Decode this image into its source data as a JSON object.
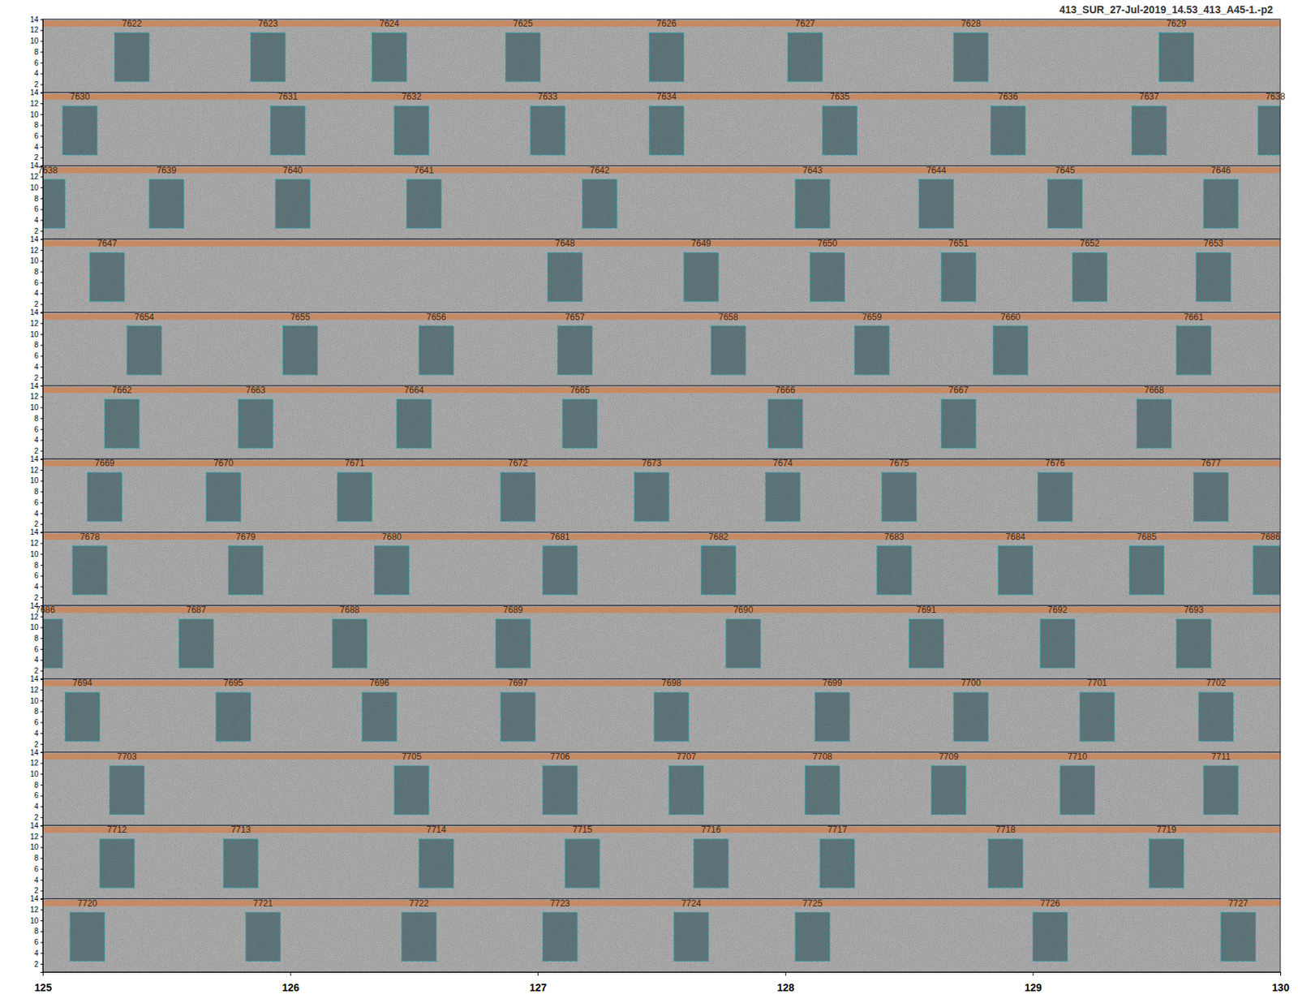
{
  "chart_data": {
    "type": "spectrogram_detections",
    "title": "413_SUR_27-Jul-2019_14.53_413_A45-1.-p2",
    "xlim": [
      125,
      130
    ],
    "xticks": [
      125,
      126,
      127,
      128,
      129,
      130
    ],
    "ylim": [
      0.5,
      14
    ],
    "yticks": [
      2,
      4,
      6,
      8,
      10,
      12,
      14
    ],
    "box_duration": 0.14,
    "freq_range": [
      2.5,
      11.5
    ],
    "rows": [
      {
        "detections": [
          {
            "label": "7622",
            "x": 125.36
          },
          {
            "label": "7623",
            "x": 125.91
          },
          {
            "label": "7624",
            "x": 126.4
          },
          {
            "label": "7625",
            "x": 126.94
          },
          {
            "label": "7626",
            "x": 127.52
          },
          {
            "label": "7627",
            "x": 128.08
          },
          {
            "label": "7628",
            "x": 128.75
          },
          {
            "label": "7629",
            "x": 129.58
          }
        ]
      },
      {
        "detections": [
          {
            "label": "7630",
            "x": 125.15
          },
          {
            "label": "7631",
            "x": 125.99
          },
          {
            "label": "7632",
            "x": 126.49
          },
          {
            "label": "7633",
            "x": 127.04
          },
          {
            "label": "7634",
            "x": 127.52
          },
          {
            "label": "7635",
            "x": 128.22
          },
          {
            "label": "7636",
            "x": 128.9
          },
          {
            "label": "7637",
            "x": 129.47
          },
          {
            "label": "7638",
            "x": 129.98
          }
        ]
      },
      {
        "detections": [
          {
            "label": "7638",
            "x": 125.02
          },
          {
            "label": "7639",
            "x": 125.5
          },
          {
            "label": "7640",
            "x": 126.01
          },
          {
            "label": "7641",
            "x": 126.54
          },
          {
            "label": "7642",
            "x": 127.25
          },
          {
            "label": "7643",
            "x": 128.11
          },
          {
            "label": "7644",
            "x": 128.61
          },
          {
            "label": "7645",
            "x": 129.13
          },
          {
            "label": "7646",
            "x": 129.76
          }
        ]
      },
      {
        "detections": [
          {
            "label": "7647",
            "x": 125.26
          },
          {
            "label": "7648",
            "x": 127.11
          },
          {
            "label": "7649",
            "x": 127.66
          },
          {
            "label": "7650",
            "x": 128.17
          },
          {
            "label": "7651",
            "x": 128.7
          },
          {
            "label": "7652",
            "x": 129.23
          },
          {
            "label": "7653",
            "x": 129.73
          }
        ]
      },
      {
        "detections": [
          {
            "label": "7654",
            "x": 125.41
          },
          {
            "label": "7655",
            "x": 126.04
          },
          {
            "label": "7656",
            "x": 126.59
          },
          {
            "label": "7657",
            "x": 127.15
          },
          {
            "label": "7658",
            "x": 127.77
          },
          {
            "label": "7659",
            "x": 128.35
          },
          {
            "label": "7660",
            "x": 128.91
          },
          {
            "label": "7661",
            "x": 129.65
          }
        ]
      },
      {
        "detections": [
          {
            "label": "7662",
            "x": 125.32
          },
          {
            "label": "7663",
            "x": 125.86
          },
          {
            "label": "7664",
            "x": 126.5
          },
          {
            "label": "7665",
            "x": 127.17
          },
          {
            "label": "7666",
            "x": 128.0
          },
          {
            "label": "7667",
            "x": 128.7
          },
          {
            "label": "7668",
            "x": 129.49
          }
        ]
      },
      {
        "detections": [
          {
            "label": "7669",
            "x": 125.25
          },
          {
            "label": "7670",
            "x": 125.73
          },
          {
            "label": "7671",
            "x": 126.26
          },
          {
            "label": "7672",
            "x": 126.92
          },
          {
            "label": "7673",
            "x": 127.46
          },
          {
            "label": "7674",
            "x": 127.99
          },
          {
            "label": "7675",
            "x": 128.46
          },
          {
            "label": "7676",
            "x": 129.09
          },
          {
            "label": "7677",
            "x": 129.72
          }
        ]
      },
      {
        "detections": [
          {
            "label": "7678",
            "x": 125.19
          },
          {
            "label": "7679",
            "x": 125.82
          },
          {
            "label": "7680",
            "x": 126.41
          },
          {
            "label": "7681",
            "x": 127.09
          },
          {
            "label": "7682",
            "x": 127.73
          },
          {
            "label": "7683",
            "x": 128.44
          },
          {
            "label": "7684",
            "x": 128.93
          },
          {
            "label": "7685",
            "x": 129.46
          },
          {
            "label": "7686",
            "x": 129.96
          }
        ]
      },
      {
        "detections": [
          {
            "label": "7686",
            "x": 125.01
          },
          {
            "label": "7687",
            "x": 125.62
          },
          {
            "label": "7688",
            "x": 126.24
          },
          {
            "label": "7689",
            "x": 126.9
          },
          {
            "label": "7690",
            "x": 127.83
          },
          {
            "label": "7691",
            "x": 128.57
          },
          {
            "label": "7692",
            "x": 129.1
          },
          {
            "label": "7693",
            "x": 129.65
          }
        ]
      },
      {
        "detections": [
          {
            "label": "7694",
            "x": 125.16
          },
          {
            "label": "7695",
            "x": 125.77
          },
          {
            "label": "7696",
            "x": 126.36
          },
          {
            "label": "7697",
            "x": 126.92
          },
          {
            "label": "7698",
            "x": 127.54
          },
          {
            "label": "7699",
            "x": 128.19
          },
          {
            "label": "7700",
            "x": 128.75
          },
          {
            "label": "7701",
            "x": 129.26
          },
          {
            "label": "7702",
            "x": 129.74
          }
        ]
      },
      {
        "detections": [
          {
            "label": "7703",
            "x": 125.34
          },
          {
            "label": "7705",
            "x": 126.49
          },
          {
            "label": "7706",
            "x": 127.09
          },
          {
            "label": "7707",
            "x": 127.6
          },
          {
            "label": "7708",
            "x": 128.15
          },
          {
            "label": "7709",
            "x": 128.66
          },
          {
            "label": "7710",
            "x": 129.18
          },
          {
            "label": "7711",
            "x": 129.76
          }
        ]
      },
      {
        "detections": [
          {
            "label": "7712",
            "x": 125.3
          },
          {
            "label": "7713",
            "x": 125.8
          },
          {
            "label": "7714",
            "x": 126.59
          },
          {
            "label": "7715",
            "x": 127.18
          },
          {
            "label": "7716",
            "x": 127.7
          },
          {
            "label": "7717",
            "x": 128.21
          },
          {
            "label": "7718",
            "x": 128.89
          },
          {
            "label": "7719",
            "x": 129.54
          }
        ]
      },
      {
        "detections": [
          {
            "label": "7720",
            "x": 125.18
          },
          {
            "label": "7721",
            "x": 125.89
          },
          {
            "label": "7722",
            "x": 126.52
          },
          {
            "label": "7723",
            "x": 127.09
          },
          {
            "label": "7724",
            "x": 127.62
          },
          {
            "label": "7725",
            "x": 128.11
          },
          {
            "label": "7726",
            "x": 129.07
          },
          {
            "label": "7727",
            "x": 129.83
          }
        ]
      }
    ]
  }
}
